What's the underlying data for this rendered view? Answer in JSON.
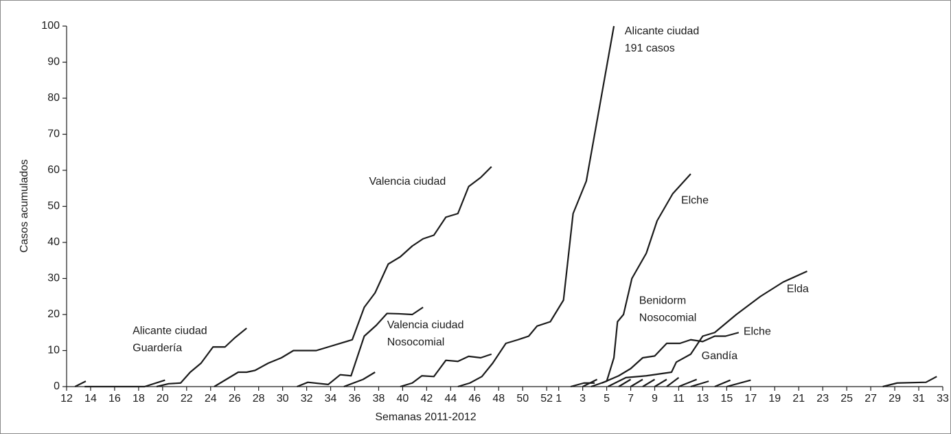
{
  "chart_data": {
    "type": "line",
    "xlabel": "Semanas 2011-2012",
    "ylabel": "Casos acumulados",
    "xlim": [
      12,
      85
    ],
    "ylim": [
      0,
      100
    ],
    "xticks": [
      12,
      14,
      16,
      18,
      20,
      22,
      24,
      26,
      28,
      30,
      32,
      34,
      36,
      38,
      40,
      42,
      44,
      46,
      48,
      50,
      52,
      {
        "value": 53,
        "label": "1"
      },
      {
        "value": 55,
        "label": "3"
      },
      {
        "value": 57,
        "label": "5"
      },
      {
        "value": 59,
        "label": "7"
      },
      {
        "value": 61,
        "label": "9"
      },
      {
        "value": 63,
        "label": "11"
      },
      {
        "value": 65,
        "label": "13"
      },
      {
        "value": 67,
        "label": "15"
      },
      {
        "value": 69,
        "label": "17"
      },
      {
        "value": 71,
        "label": "19"
      },
      {
        "value": 73,
        "label": "21"
      },
      {
        "value": 75,
        "label": "23"
      },
      {
        "value": 77,
        "label": "25"
      },
      {
        "value": 79,
        "label": "27"
      },
      {
        "value": 81,
        "label": "29"
      },
      {
        "value": 83,
        "label": "31"
      },
      {
        "value": 85,
        "label": "33"
      }
    ],
    "yticks": [
      0,
      10,
      20,
      30,
      40,
      50,
      60,
      70,
      80,
      90,
      100
    ],
    "series": [
      {
        "color": "#1a1a1a",
        "x": [
          12.7,
          13.6
        ],
        "values": [
          0,
          1.5
        ]
      },
      {
        "color": "#1a1a1a",
        "x": [
          13.5,
          18.5,
          20.2
        ],
        "values": [
          0,
          0,
          1.8
        ]
      },
      {
        "color": "#1a1a1a",
        "x": [
          19.5,
          20.5,
          21.5,
          22.3,
          23.2,
          24.2,
          25.2,
          26,
          27
        ],
        "values": [
          0,
          0.8,
          1,
          4,
          6.5,
          11,
          11,
          13.5,
          16.2
        ]
      },
      {
        "color": "#1a1a1a",
        "x": [
          24.3,
          26.3,
          27,
          27.7,
          28.8,
          29.9,
          30.9,
          32.8,
          33.8,
          35.8,
          36.8,
          37.7,
          38.8,
          39.8,
          40.8,
          41.7,
          42.6,
          43.6,
          44.6,
          45.5,
          46.5,
          47.4
        ],
        "values": [
          0,
          4,
          4,
          4.5,
          6.5,
          8,
          10,
          10,
          11,
          13,
          22,
          26,
          34,
          36,
          39,
          41,
          42,
          47,
          48,
          55.5,
          58,
          61
        ]
      },
      {
        "color": "#1a1a1a",
        "x": [
          31.2,
          32.1,
          33.8,
          34.8,
          35.7,
          36.8,
          37.8,
          38.7,
          39.7,
          40.8,
          41.7
        ],
        "values": [
          0,
          1.2,
          0.6,
          3.3,
          3,
          14,
          17,
          20.3,
          20.2,
          20,
          22
        ]
      },
      {
        "color": "#1a1a1a",
        "x": [
          35.1,
          36.7,
          37.7
        ],
        "values": [
          0,
          2,
          4
        ]
      },
      {
        "color": "#1a1a1a",
        "x": [
          39.8,
          40.8,
          41.6,
          42.6,
          43.6,
          44.6,
          45.5,
          46.5,
          47.4
        ],
        "values": [
          0,
          1,
          3,
          2.8,
          7.3,
          7,
          8.4,
          8,
          9
        ]
      },
      {
        "color": "#1a1a1a",
        "x": [
          44.6,
          45.6,
          46.6,
          47.5,
          48.6,
          49.6,
          50.5,
          51.2,
          52.3,
          53.4,
          54.2,
          55.3,
          57.6
        ],
        "values": [
          0,
          1,
          2.8,
          6.5,
          12,
          13,
          14,
          16.8,
          18,
          24,
          48,
          57,
          100
        ]
      },
      {
        "color": "#1a1a1a",
        "x": [
          54,
          55.1,
          56
        ],
        "values": [
          0,
          1,
          1
        ]
      },
      {
        "color": "#1a1a1a",
        "x": [
          55.7,
          57,
          57.6,
          57.9,
          58.4,
          59.1,
          60.3,
          61.2,
          62.5,
          64
        ],
        "values": [
          0,
          1.5,
          8,
          18,
          20,
          30,
          37,
          46,
          53.5,
          59
        ]
      },
      {
        "color": "#1a1a1a",
        "x": [
          56.6,
          58,
          59,
          60,
          61,
          62,
          63.1,
          64,
          65,
          66,
          66.9,
          68
        ],
        "values": [
          1,
          3,
          5,
          8,
          8.5,
          12,
          12,
          13,
          12.5,
          14,
          14,
          15
        ]
      },
      {
        "color": "#1a1a1a",
        "x": [
          57.1,
          58.6,
          60.3,
          62.4,
          62.8,
          64,
          65,
          66,
          67.8,
          69.8,
          71.7,
          73.7
        ],
        "values": [
          0,
          2.5,
          3,
          4,
          6.8,
          9,
          14,
          15,
          20,
          25,
          29,
          32
        ]
      },
      {
        "color": "#1a1a1a",
        "x": [
          55,
          56.2
        ],
        "values": [
          0,
          2
        ]
      },
      {
        "color": "#1a1a1a",
        "x": [
          58,
          59
        ],
        "values": [
          0,
          2
        ]
      },
      {
        "color": "#1a1a1a",
        "x": [
          59,
          60
        ],
        "values": [
          0,
          2
        ]
      },
      {
        "color": "#1a1a1a",
        "x": [
          60,
          61
        ],
        "values": [
          0,
          2
        ]
      },
      {
        "color": "#1a1a1a",
        "x": [
          61,
          62
        ],
        "values": [
          0,
          2
        ]
      },
      {
        "color": "#1a1a1a",
        "x": [
          62,
          63
        ],
        "values": [
          0,
          2.5
        ]
      },
      {
        "color": "#1a1a1a",
        "x": [
          63,
          64.5
        ],
        "values": [
          0,
          2
        ]
      },
      {
        "color": "#1a1a1a",
        "x": [
          64,
          65.5
        ],
        "values": [
          0,
          1.5
        ]
      },
      {
        "color": "#1a1a1a",
        "x": [
          66,
          67.3
        ],
        "values": [
          0,
          1.8
        ]
      },
      {
        "color": "#1a1a1a",
        "x": [
          67,
          69
        ],
        "values": [
          0,
          1.8
        ]
      },
      {
        "color": "#1a1a1a",
        "x": [
          80,
          81.2,
          83.6,
          84.5
        ],
        "values": [
          0,
          1,
          1.2,
          2.8
        ]
      }
    ],
    "annotations": [
      {
        "lines": [
          "Alicante ciudad",
          "191 casos"
        ],
        "x": 58.5,
        "y": 98.5
      },
      {
        "lines": [
          "Valencia ciudad"
        ],
        "x": 37.2,
        "y": 56.8
      },
      {
        "lines": [
          "Alicante ciudad",
          "Guardería"
        ],
        "x": 17.5,
        "y": 15.4
      },
      {
        "lines": [
          "Valencia ciudad",
          "Nosocomial"
        ],
        "x": 38.7,
        "y": 17
      },
      {
        "lines": [
          "Elche"
        ],
        "x": 63.2,
        "y": 51.6
      },
      {
        "lines": [
          "Benidorm",
          "Nosocomial"
        ],
        "x": 59.7,
        "y": 23.8
      },
      {
        "lines": [
          "Elda"
        ],
        "x": 72,
        "y": 27
      },
      {
        "lines": [
          "Elche"
        ],
        "x": 68.4,
        "y": 15.2
      },
      {
        "lines": [
          "Gandía"
        ],
        "x": 64.9,
        "y": 8.4
      }
    ]
  }
}
